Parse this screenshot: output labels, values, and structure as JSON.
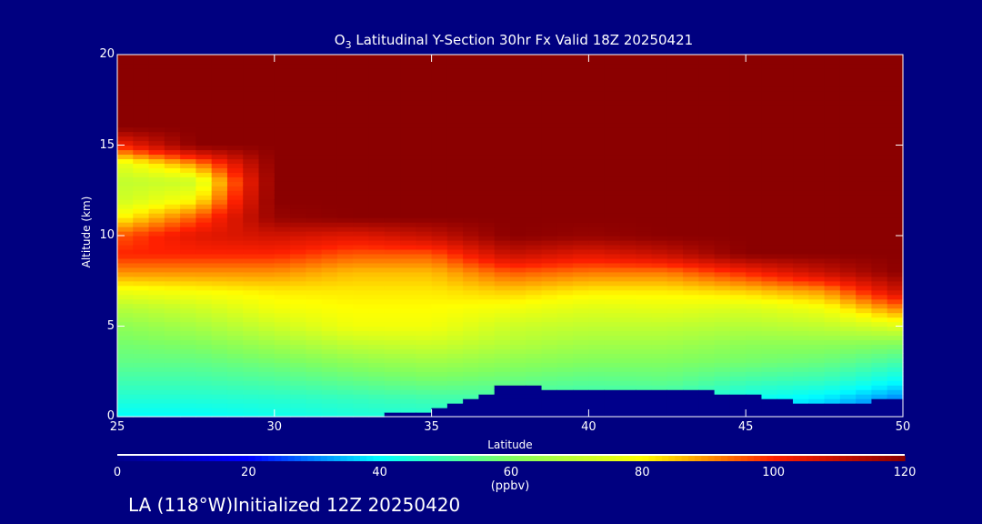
{
  "chart_data": {
    "type": "heatmap",
    "title_species": "O",
    "title_subscript": "3",
    "title": " Latitudinal Y-Section 30hr  Fx Valid 18Z 20250421",
    "xlabel": "Latitude",
    "ylabel": "Altitude (km)",
    "xlim": [
      25,
      50
    ],
    "ylim": [
      0,
      20
    ],
    "xticks": [
      "25",
      "30",
      "35",
      "40",
      "45",
      "50"
    ],
    "yticks": [
      "0",
      "5",
      "10",
      "15",
      "20"
    ],
    "lat": [
      25,
      27.5,
      30,
      32.5,
      35,
      37.5,
      40,
      42.5,
      45,
      47.5,
      50
    ],
    "alt": [
      0,
      1,
      2,
      3,
      4,
      5,
      6,
      7,
      8,
      9,
      10,
      11,
      12,
      13,
      14,
      15,
      16,
      17,
      18,
      19,
      20
    ],
    "terrain_km": [
      0,
      0,
      0,
      0,
      0.3,
      1.8,
      1.4,
      1.5,
      1.3,
      0.6,
      1.0
    ],
    "values_by_lat": [
      [
        40,
        45,
        50,
        55,
        58,
        62,
        68,
        78,
        90,
        100,
        95,
        80,
        72,
        70,
        75,
        100,
        120,
        120,
        120,
        120,
        120
      ],
      [
        40,
        45,
        50,
        55,
        60,
        66,
        72,
        80,
        90,
        100,
        105,
        95,
        80,
        72,
        90,
        120,
        120,
        120,
        120,
        120,
        120
      ],
      [
        42,
        46,
        52,
        58,
        65,
        72,
        78,
        82,
        90,
        100,
        108,
        118,
        120,
        120,
        120,
        120,
        120,
        120,
        120,
        120,
        120
      ],
      [
        44,
        48,
        55,
        62,
        70,
        78,
        80,
        82,
        86,
        95,
        105,
        120,
        120,
        120,
        120,
        120,
        120,
        120,
        120,
        120,
        120
      ],
      [
        45,
        50,
        58,
        65,
        72,
        78,
        80,
        82,
        86,
        95,
        110,
        120,
        120,
        120,
        120,
        120,
        120,
        120,
        120,
        120,
        120
      ],
      [
        46,
        50,
        56,
        62,
        68,
        72,
        78,
        85,
        95,
        110,
        120,
        120,
        120,
        120,
        120,
        120,
        120,
        120,
        120,
        120,
        120
      ],
      [
        45,
        48,
        54,
        60,
        65,
        70,
        75,
        82,
        92,
        105,
        118,
        120,
        120,
        120,
        120,
        120,
        120,
        120,
        120,
        120,
        120
      ],
      [
        45,
        48,
        55,
        60,
        65,
        70,
        76,
        82,
        92,
        110,
        120,
        120,
        120,
        120,
        120,
        120,
        120,
        120,
        120,
        120,
        120
      ],
      [
        40,
        42,
        50,
        58,
        62,
        68,
        74,
        85,
        100,
        120,
        120,
        120,
        120,
        120,
        120,
        120,
        120,
        120,
        120,
        120,
        120
      ],
      [
        30,
        38,
        48,
        56,
        62,
        70,
        78,
        90,
        110,
        120,
        120,
        120,
        120,
        120,
        120,
        120,
        120,
        120,
        120,
        120,
        120
      ],
      [
        20,
        30,
        40,
        50,
        60,
        75,
        92,
        110,
        120,
        120,
        120,
        120,
        120,
        120,
        120,
        120,
        120,
        120,
        120,
        120,
        120
      ]
    ],
    "colorbar": {
      "range": [
        0,
        120
      ],
      "ticks": [
        "0",
        "20",
        "40",
        "60",
        "80",
        "100",
        "120"
      ],
      "units": "(ppbv)",
      "colors": [
        "#00008b",
        "#0000ff",
        "#00ffff",
        "#80ff60",
        "#ffff00",
        "#ff2000",
        "#8b0000"
      ]
    },
    "footer": "LA (118°W)Initialized 12Z 20250420"
  }
}
